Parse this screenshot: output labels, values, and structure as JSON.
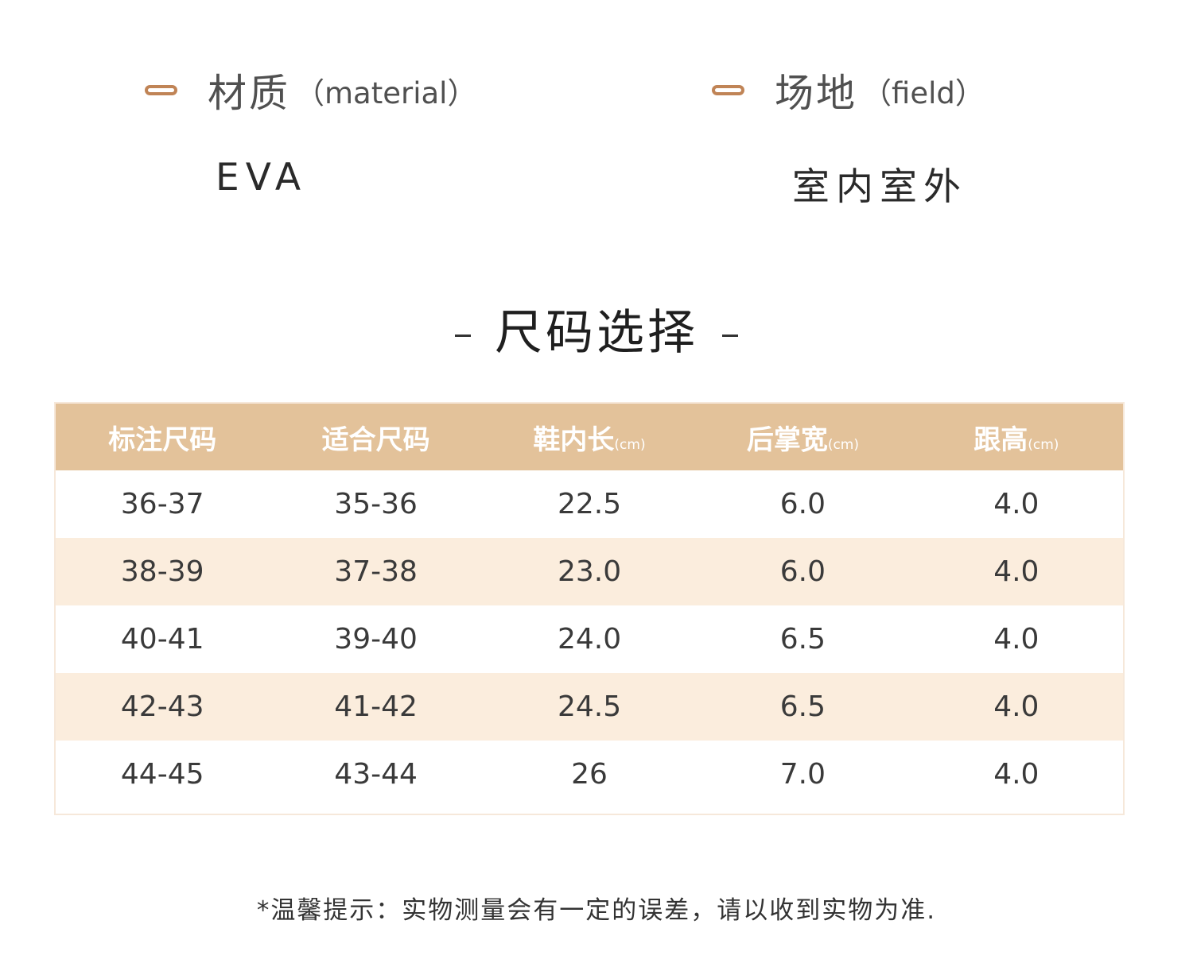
{
  "specs": {
    "material": {
      "label": "材质",
      "sub": "（material）",
      "value": "EVA"
    },
    "field": {
      "label": "场地",
      "sub": "（field）",
      "value": "室内室外"
    }
  },
  "section_title": "尺码选择",
  "table": {
    "headers": [
      {
        "label": "标注尺码",
        "unit": ""
      },
      {
        "label": "适合尺码",
        "unit": ""
      },
      {
        "label": "鞋内长",
        "unit": "(cm)"
      },
      {
        "label": "后掌宽",
        "unit": "(cm)"
      },
      {
        "label": "跟高",
        "unit": "(cm)"
      }
    ],
    "rows": [
      [
        "36-37",
        "35-36",
        "22.5",
        "6.0",
        "4.0"
      ],
      [
        "38-39",
        "37-38",
        "23.0",
        "6.0",
        "4.0"
      ],
      [
        "40-41",
        "39-40",
        "24.0",
        "6.5",
        "4.0"
      ],
      [
        "42-43",
        "41-42",
        "24.5",
        "6.5",
        "4.0"
      ],
      [
        "44-45",
        "43-44",
        "26",
        "7.0",
        "4.0"
      ]
    ]
  },
  "note": "*温馨提示：实物测量会有一定的误差，请以收到实物为准."
}
